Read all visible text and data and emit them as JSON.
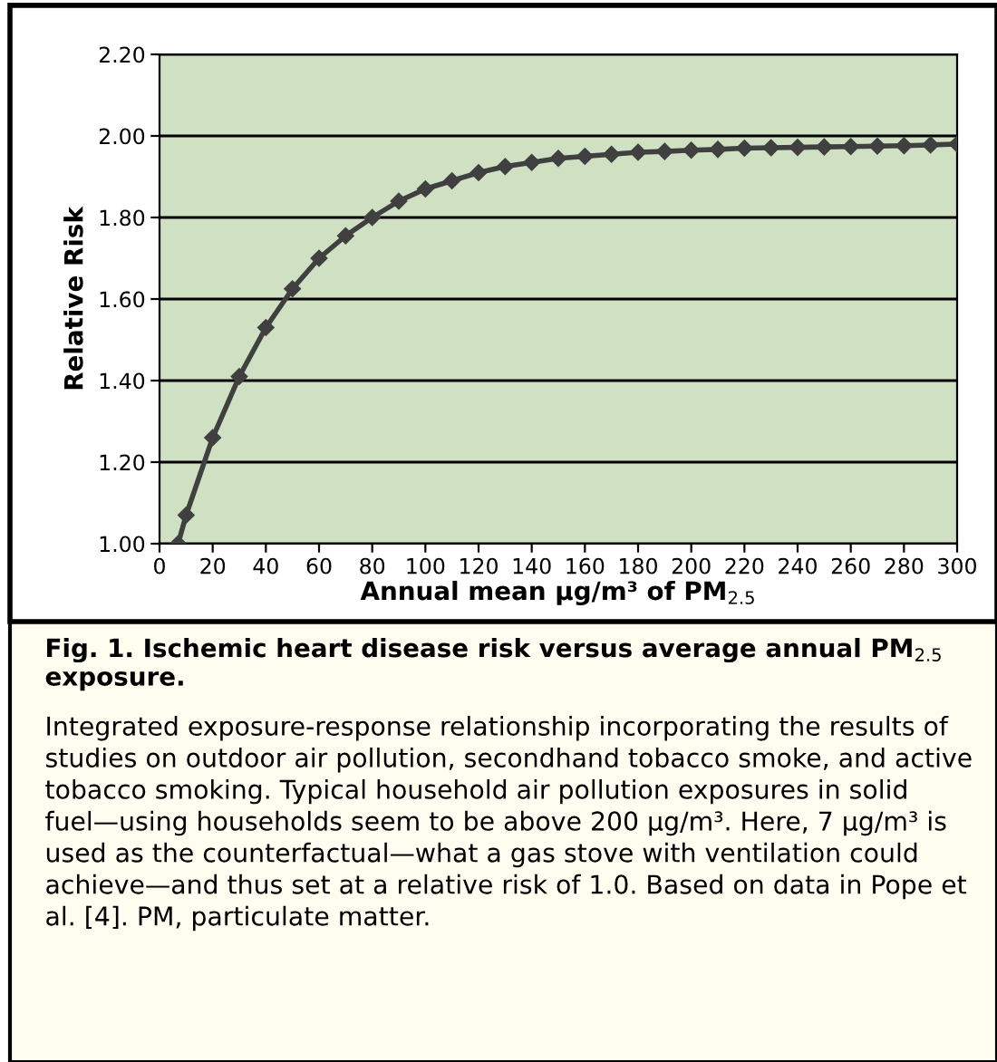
{
  "chart_data": {
    "type": "line",
    "title": "Fig. 1. Ischemic heart disease risk versus average annual PM$_{2.5}$ exposure.",
    "xlabel": "Annual mean µg/m³ of PM$_{2.5}$",
    "ylabel": "Relative Risk",
    "x": [
      7,
      10,
      20,
      30,
      40,
      50,
      60,
      70,
      80,
      90,
      100,
      110,
      120,
      130,
      140,
      150,
      160,
      170,
      180,
      190,
      200,
      210,
      220,
      230,
      240,
      250,
      260,
      270,
      280,
      290,
      300
    ],
    "series": [
      {
        "color": "#404040",
        "values": [
          1.0,
          1.07,
          1.26,
          1.41,
          1.53,
          1.625,
          1.7,
          1.755,
          1.8,
          1.84,
          1.87,
          1.89,
          1.91,
          1.925,
          1.935,
          1.945,
          1.95,
          1.955,
          1.96,
          1.962,
          1.965,
          1.967,
          1.97,
          1.971,
          1.972,
          1.973,
          1.974,
          1.975,
          1.976,
          1.978,
          1.98
        ]
      }
    ],
    "xlim": [
      0,
      300
    ],
    "xticks": [
      0,
      20,
      40,
      60,
      80,
      100,
      120,
      140,
      160,
      180,
      200,
      220,
      240,
      260,
      280,
      300
    ],
    "ylim": [
      1.0,
      2.2
    ],
    "yticks": [
      {
        "value": 1.0,
        "label": "1.00"
      },
      {
        "value": 1.2,
        "label": "1.20"
      },
      {
        "value": 1.4,
        "label": "1.40"
      },
      {
        "value": 1.6,
        "label": "1.60"
      },
      {
        "value": 1.8,
        "label": "1.80"
      },
      {
        "value": 2.0,
        "label": "2.00"
      },
      {
        "value": 2.2,
        "label": "2.20"
      }
    ],
    "grid": "y",
    "marker": "diamond",
    "line_style": "solid",
    "legend": false,
    "annotations": [
      "Integrated exposure-response relationship incorporating the results of studies on outdoor air pollution, secondhand tobacco smoke, and active tobacco smoking. Typical household air pollution exposures in solid fuel—using households seem to be above 200 µg/m³. Here, 7 µg/m³ is used as the counterfactual—what a gas stove with ventilation could achieve—and thus set at a relative risk of 1.0. Based on data in Pope et al. [4]. PM, particulate matter."
    ]
  }
}
